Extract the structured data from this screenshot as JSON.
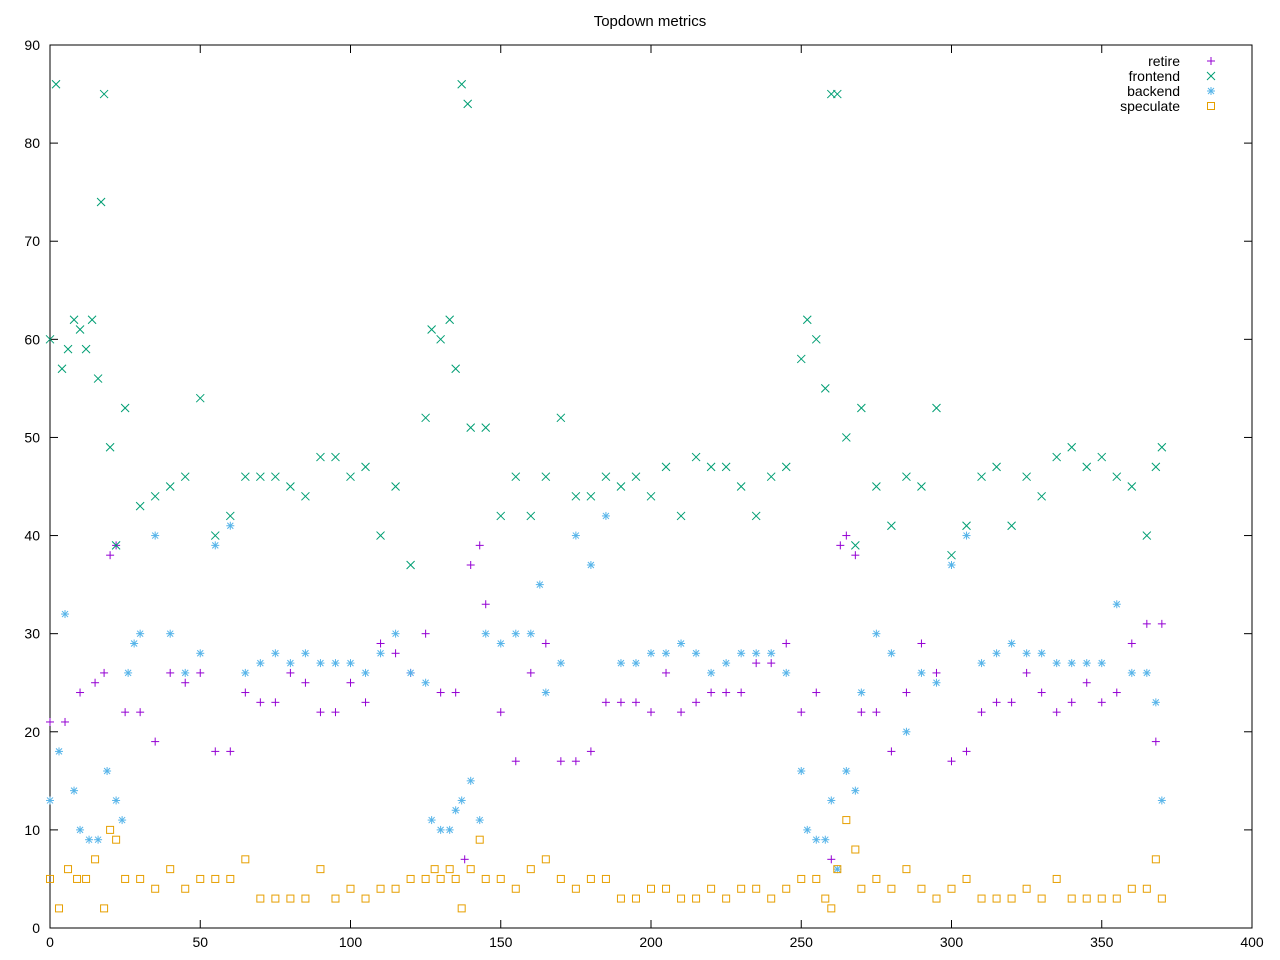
{
  "chart_data": {
    "type": "scatter",
    "title": "Topdown metrics",
    "xlabel": "",
    "ylabel": "",
    "xlim": [
      0,
      400
    ],
    "ylim": [
      0,
      90
    ],
    "x_ticks": [
      "0",
      "50",
      "100",
      "150",
      "200",
      "250",
      "300",
      "350",
      "400"
    ],
    "y_ticks": [
      "0",
      "10",
      "20",
      "30",
      "40",
      "50",
      "60",
      "70",
      "80",
      "90"
    ],
    "legend_position": "top-right",
    "grid": false,
    "series": [
      {
        "name": "retire",
        "color": "#9400d3",
        "marker": "plus",
        "x": [
          0,
          5,
          10,
          15,
          18,
          20,
          22,
          25,
          30,
          35,
          40,
          45,
          50,
          55,
          60,
          65,
          70,
          75,
          80,
          85,
          90,
          95,
          100,
          105,
          110,
          115,
          120,
          125,
          130,
          135,
          138,
          140,
          143,
          145,
          150,
          155,
          160,
          165,
          170,
          175,
          180,
          185,
          190,
          195,
          200,
          205,
          210,
          215,
          220,
          225,
          230,
          235,
          240,
          245,
          250,
          255,
          260,
          263,
          265,
          268,
          270,
          275,
          280,
          285,
          290,
          295,
          300,
          305,
          310,
          315,
          320,
          325,
          330,
          335,
          340,
          345,
          350,
          355,
          360,
          365,
          368,
          370
        ],
        "y": [
          21,
          21,
          24,
          25,
          26,
          38,
          39,
          22,
          22,
          19,
          26,
          25,
          26,
          18,
          18,
          24,
          23,
          23,
          26,
          25,
          22,
          22,
          25,
          23,
          29,
          28,
          26,
          30,
          24,
          24,
          7,
          37,
          39,
          33,
          22,
          17,
          26,
          29,
          17,
          17,
          18,
          23,
          23,
          23,
          22,
          26,
          22,
          23,
          24,
          24,
          24,
          27,
          27,
          29,
          22,
          24,
          7,
          39,
          40,
          38,
          22,
          22,
          18,
          24,
          29,
          26,
          17,
          18,
          22,
          23,
          23,
          26,
          24,
          22,
          23,
          25,
          23,
          24,
          29,
          31,
          19,
          31
        ]
      },
      {
        "name": "frontend",
        "color": "#009e73",
        "marker": "cross",
        "x": [
          0,
          2,
          4,
          6,
          8,
          10,
          12,
          14,
          16,
          17,
          18,
          20,
          22,
          25,
          30,
          35,
          40,
          45,
          50,
          55,
          60,
          65,
          70,
          75,
          80,
          85,
          90,
          95,
          100,
          105,
          110,
          115,
          120,
          125,
          127,
          130,
          133,
          135,
          137,
          139,
          140,
          145,
          150,
          155,
          160,
          165,
          170,
          175,
          180,
          185,
          190,
          195,
          200,
          205,
          210,
          215,
          220,
          225,
          230,
          235,
          240,
          245,
          250,
          252,
          255,
          258,
          260,
          262,
          265,
          268,
          270,
          275,
          280,
          285,
          290,
          295,
          300,
          305,
          310,
          315,
          320,
          325,
          330,
          335,
          340,
          345,
          350,
          355,
          360,
          365,
          368,
          370
        ],
        "y": [
          60,
          86,
          57,
          59,
          62,
          61,
          59,
          62,
          56,
          74,
          85,
          49,
          39,
          53,
          43,
          44,
          45,
          46,
          54,
          40,
          42,
          46,
          46,
          46,
          45,
          44,
          48,
          48,
          46,
          47,
          40,
          45,
          37,
          52,
          61,
          60,
          62,
          57,
          86,
          84,
          51,
          51,
          42,
          46,
          42,
          46,
          52,
          44,
          44,
          46,
          45,
          46,
          44,
          47,
          42,
          48,
          47,
          47,
          45,
          42,
          46,
          47,
          58,
          62,
          60,
          55,
          85,
          85,
          50,
          39,
          53,
          45,
          41,
          46,
          45,
          53,
          38,
          41,
          46,
          47,
          41,
          46,
          44,
          48,
          49,
          47,
          48,
          46,
          45,
          40,
          47,
          49
        ]
      },
      {
        "name": "backend",
        "color": "#56b4e9",
        "marker": "star",
        "x": [
          0,
          3,
          5,
          8,
          10,
          13,
          16,
          19,
          22,
          24,
          26,
          28,
          30,
          35,
          40,
          45,
          50,
          55,
          60,
          65,
          70,
          75,
          80,
          85,
          90,
          95,
          100,
          105,
          110,
          115,
          120,
          125,
          127,
          130,
          133,
          135,
          137,
          140,
          143,
          145,
          150,
          155,
          160,
          163,
          165,
          170,
          175,
          180,
          185,
          190,
          195,
          200,
          205,
          210,
          215,
          220,
          225,
          230,
          235,
          240,
          245,
          250,
          252,
          255,
          258,
          260,
          262,
          265,
          268,
          270,
          275,
          280,
          285,
          290,
          295,
          300,
          305,
          310,
          315,
          320,
          325,
          330,
          335,
          340,
          345,
          350,
          355,
          360,
          365,
          368,
          370
        ],
        "y": [
          13,
          18,
          32,
          14,
          10,
          9,
          9,
          16,
          13,
          11,
          26,
          29,
          30,
          40,
          30,
          26,
          28,
          39,
          41,
          26,
          27,
          28,
          27,
          28,
          27,
          27,
          27,
          26,
          28,
          30,
          26,
          25,
          11,
          10,
          10,
          12,
          13,
          15,
          11,
          30,
          29,
          30,
          30,
          35,
          24,
          27,
          40,
          37,
          42,
          27,
          27,
          28,
          28,
          29,
          28,
          26,
          27,
          28,
          28,
          28,
          26,
          16,
          10,
          9,
          9,
          13,
          6,
          16,
          14,
          24,
          30,
          28,
          20,
          26,
          25,
          37,
          40,
          27,
          28,
          29,
          28,
          28,
          27,
          27,
          27,
          27,
          33,
          26,
          26,
          23,
          13
        ]
      },
      {
        "name": "speculate",
        "color": "#e69f00",
        "marker": "square",
        "x": [
          0,
          3,
          6,
          9,
          12,
          15,
          18,
          20,
          22,
          25,
          30,
          35,
          40,
          45,
          50,
          55,
          60,
          65,
          70,
          75,
          80,
          85,
          90,
          95,
          100,
          105,
          110,
          115,
          120,
          125,
          128,
          130,
          133,
          135,
          137,
          140,
          143,
          145,
          150,
          155,
          160,
          165,
          170,
          175,
          180,
          185,
          190,
          195,
          200,
          205,
          210,
          215,
          220,
          225,
          230,
          235,
          240,
          245,
          250,
          255,
          258,
          260,
          262,
          265,
          268,
          270,
          275,
          280,
          285,
          290,
          295,
          300,
          305,
          310,
          315,
          320,
          325,
          330,
          335,
          340,
          345,
          350,
          355,
          360,
          365,
          368,
          370
        ],
        "y": [
          5,
          2,
          6,
          5,
          5,
          7,
          2,
          10,
          9,
          5,
          5,
          4,
          6,
          4,
          5,
          5,
          5,
          7,
          3,
          3,
          3,
          3,
          6,
          3,
          4,
          3,
          4,
          4,
          5,
          5,
          6,
          5,
          6,
          5,
          2,
          6,
          9,
          5,
          5,
          4,
          6,
          7,
          5,
          4,
          5,
          5,
          3,
          3,
          4,
          4,
          3,
          3,
          4,
          3,
          4,
          4,
          3,
          4,
          5,
          5,
          3,
          2,
          6,
          11,
          8,
          4,
          5,
          4,
          6,
          4,
          3,
          4,
          5,
          3,
          3,
          3,
          4,
          3,
          5,
          3,
          3,
          3,
          3,
          4,
          4,
          7,
          3
        ]
      }
    ]
  }
}
